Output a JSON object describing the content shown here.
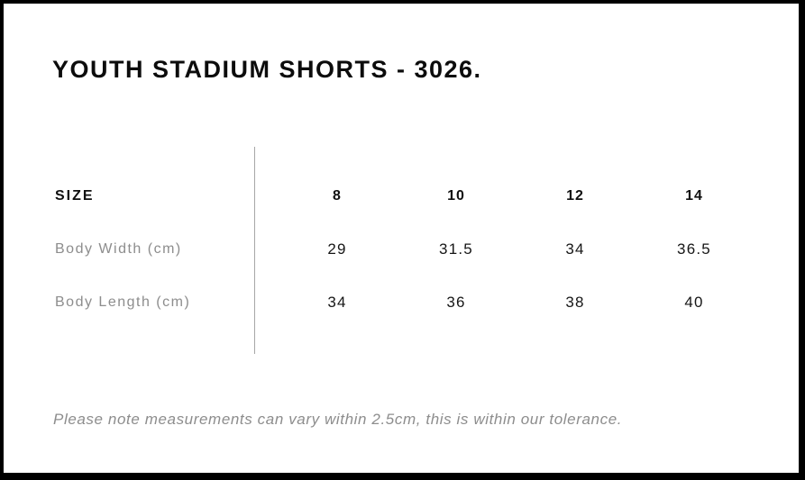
{
  "title": "YOUTH STADIUM SHORTS - 3026.",
  "size_chart": {
    "header_label": "SIZE",
    "sizes": [
      "8",
      "10",
      "12",
      "14"
    ],
    "rows": [
      {
        "label": "Body Width (cm)",
        "values": [
          "29",
          "31.5",
          "34",
          "36.5"
        ]
      },
      {
        "label": "Body Length (cm)",
        "values": [
          "34",
          "36",
          "38",
          "40"
        ]
      }
    ]
  },
  "footnote": "Please note measurements can vary within 2.5cm, this is within our tolerance.",
  "colors": {
    "frame": "#000000",
    "panel_background": "#ffffff",
    "text_primary": "#101010",
    "text_muted": "#8d8d8d",
    "divider": "#a6a6a6"
  }
}
